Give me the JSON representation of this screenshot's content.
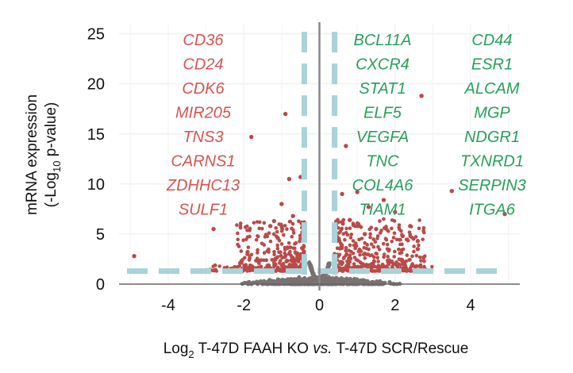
{
  "chart_data": {
    "type": "scatter",
    "title": "",
    "xlabel": {
      "prefix": "Log",
      "subscript": "2",
      "text": " T-47D FAAH KO ",
      "italic": "vs.",
      "suffix": " T-47D SCR/Rescue"
    },
    "ylabel": {
      "line1": "mRNA expression",
      "line2_prefix": "(-Log",
      "line2_subscript": "10",
      "line2_suffix": " p-value)"
    },
    "xlim": [
      -5.3,
      5.3
    ],
    "ylim": [
      0,
      26
    ],
    "xticks": [
      -4,
      -2,
      0,
      2,
      4
    ],
    "xtick_labels": [
      "-4",
      "-2",
      "0",
      "2",
      "4"
    ],
    "yticks": [
      0,
      5,
      10,
      15,
      20,
      25
    ],
    "ytick_labels": [
      "0",
      "5",
      "10",
      "15",
      "20",
      "25"
    ],
    "grid": true,
    "thresholds": {
      "fold_change": [
        -0.4,
        0.4
      ],
      "p_value_line": 1.3
    },
    "colors": {
      "significant": "#b94a48",
      "nonsignificant": "#7a7272",
      "threshold": "#a8d3d8",
      "zero_line": "#888888",
      "down_label": "#d9534f",
      "up_label": "#27a05a",
      "grid": "#ebebeb"
    },
    "labels_down": [
      "CD36",
      "CD24",
      "CDK6",
      "MIR205",
      "TNS3",
      "CARNS1",
      "ZDHHC13",
      "SULF1"
    ],
    "labels_up_col1": [
      "BCL11A",
      "CXCR4",
      "STAT1",
      "ELF5",
      "VEGFA",
      "TNC",
      "COL4A6",
      "TIAM1"
    ],
    "labels_up_col2": [
      "CD44",
      "ESR1",
      "ALCAM",
      "MGP",
      "NDGR1",
      "TXNRD1",
      "SERPIN3",
      "ITGA6"
    ],
    "highlighted_points": [
      {
        "x": -4.9,
        "y": 2.8
      },
      {
        "x": -2.8,
        "y": 5.5
      },
      {
        "x": -1.8,
        "y": 14.7
      },
      {
        "x": -0.9,
        "y": 17.0
      },
      {
        "x": -1.0,
        "y": 8.0
      },
      {
        "x": -1.2,
        "y": 6.3
      },
      {
        "x": -1.9,
        "y": 3.2
      },
      {
        "x": -0.5,
        "y": 10.7
      },
      {
        "x": -1.1,
        "y": 4.6
      },
      {
        "x": 0.7,
        "y": 13.8
      },
      {
        "x": 1.0,
        "y": 9.2
      },
      {
        "x": 1.7,
        "y": 8.4
      },
      {
        "x": 2.0,
        "y": 7.2
      },
      {
        "x": 2.4,
        "y": 5.8
      },
      {
        "x": 2.6,
        "y": 4.3
      },
      {
        "x": 1.5,
        "y": 5.5
      },
      {
        "x": 0.8,
        "y": 6.4
      },
      {
        "x": 2.7,
        "y": 18.8
      },
      {
        "x": 3.5,
        "y": 9.3
      },
      {
        "x": 4.9,
        "y": 7.0
      },
      {
        "x": 2.6,
        "y": 3.5
      },
      {
        "x": 1.2,
        "y": 5.0
      },
      {
        "x": 0.9,
        "y": 5.9
      },
      {
        "x": 1.3,
        "y": 7.7
      },
      {
        "x": 0.6,
        "y": 9.0
      },
      {
        "x": -0.7,
        "y": 6.8
      },
      {
        "x": -0.8,
        "y": 10.5
      },
      {
        "x": -1.3,
        "y": 5.8
      },
      {
        "x": 2.2,
        "y": 4.8
      }
    ]
  }
}
